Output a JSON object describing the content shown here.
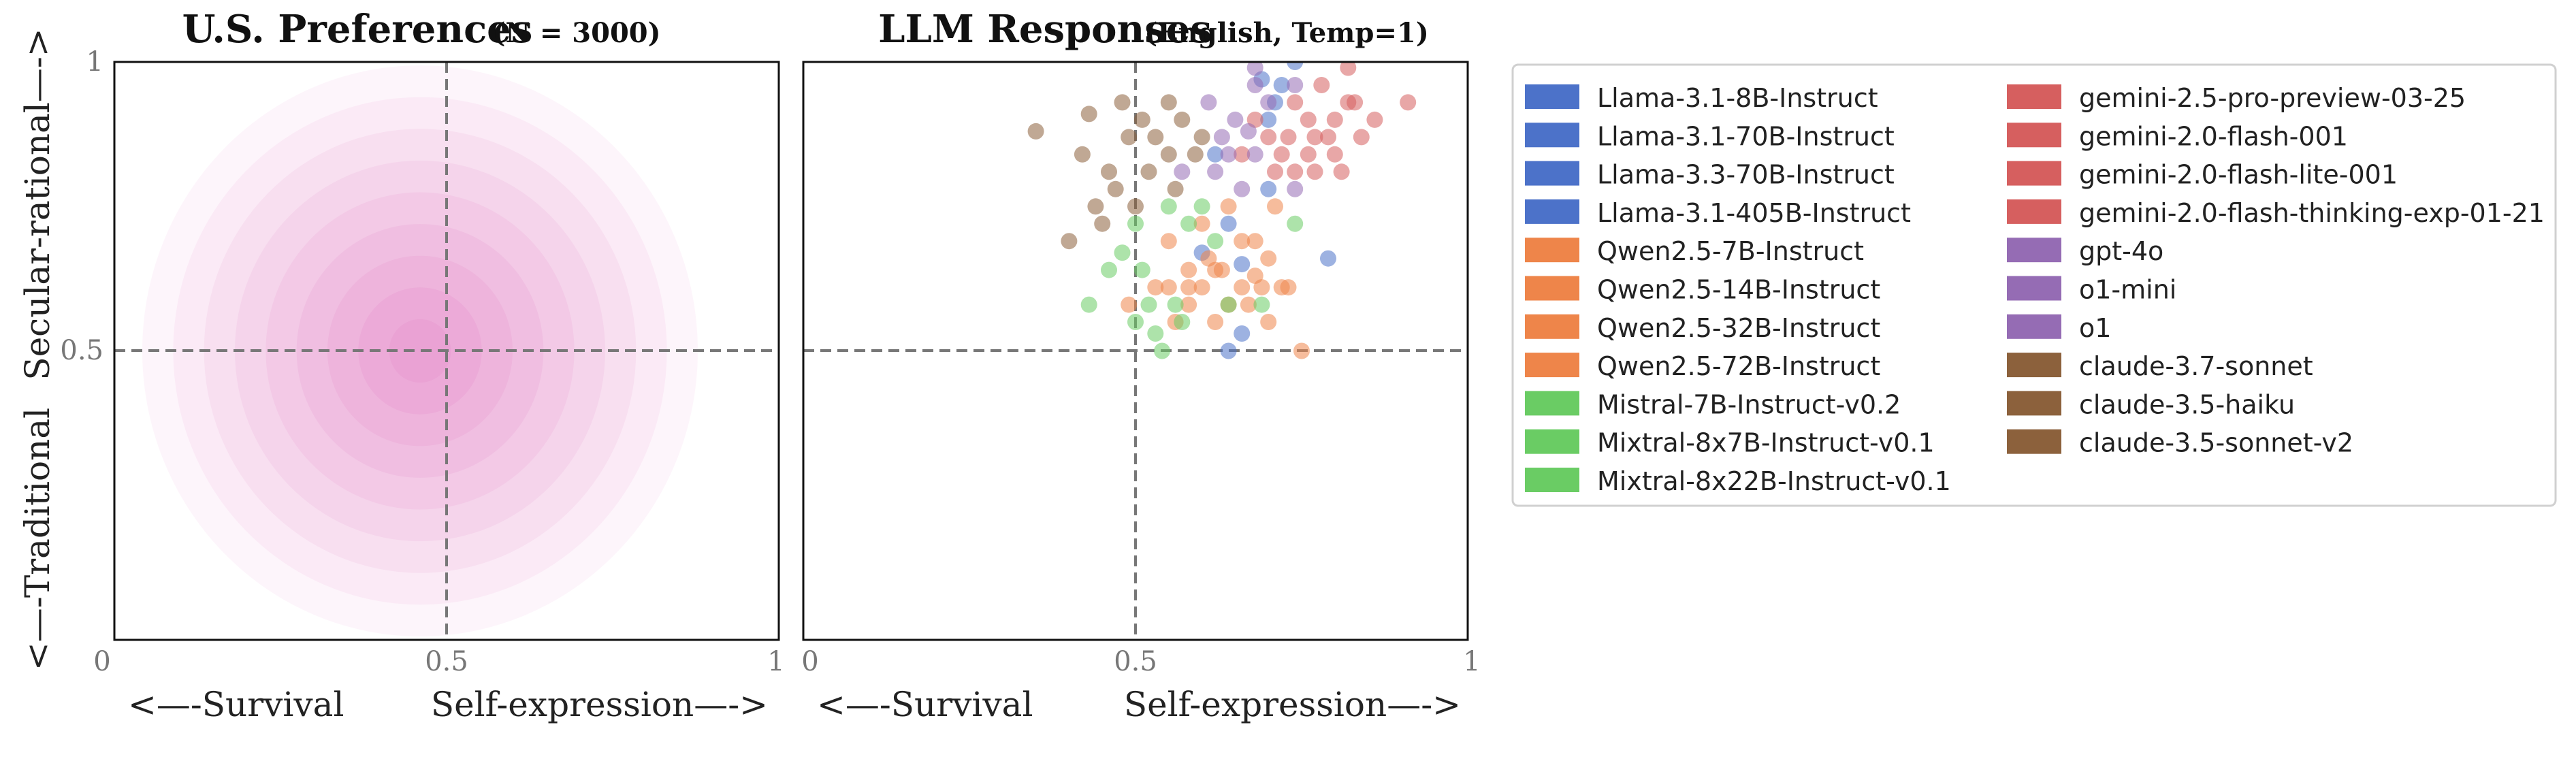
{
  "chart_data": [
    {
      "type": "heatmap",
      "title": "U.S. Preferences",
      "subtitle": "(N = 3000)",
      "xlabel_left": "<—-Survival",
      "xlabel_right": "Self-expression—->",
      "ylabel_top": "Secular-rational—->",
      "ylabel_bottom": "<—-Traditional",
      "xlim": [
        0,
        1
      ],
      "ylim": [
        0,
        1
      ],
      "xticks": [
        "0",
        "0.5",
        "1"
      ],
      "yticks": [
        "0.5",
        "1"
      ],
      "reference_lines": {
        "x": 0.5,
        "y": 0.5
      },
      "density_color": "#e377c2",
      "density_peak": {
        "x": 0.46,
        "y": 0.5
      },
      "density_spread": {
        "x": 0.22,
        "y": 0.26
      }
    },
    {
      "type": "scatter",
      "title": "LLM Responses",
      "subtitle": "(English, Temp=1)",
      "xlabel_left": "<—-Survival",
      "xlabel_right": "Self-expression—->",
      "xlim": [
        0,
        1
      ],
      "ylim": [
        0,
        1
      ],
      "xticks": [
        "0",
        "0.5",
        "1"
      ],
      "reference_lines": {
        "x": 0.5,
        "y": 0.5
      },
      "marker_opacity": 0.55,
      "series": [
        {
          "name": "Llama-3.1-8B-Instruct",
          "color": "#4c72c9",
          "points": [
            [
              0.74,
              1.0
            ],
            [
              0.69,
              0.97
            ],
            [
              0.71,
              0.93
            ]
          ]
        },
        {
          "name": "Llama-3.1-70B-Instruct",
          "color": "#4c72c9",
          "points": [
            [
              0.72,
              0.96
            ],
            [
              0.66,
              0.65
            ],
            [
              0.7,
              0.78
            ]
          ]
        },
        {
          "name": "Llama-3.3-70B-Instruct",
          "color": "#4c72c9",
          "points": [
            [
              0.7,
              0.9
            ],
            [
              0.64,
              0.72
            ],
            [
              0.6,
              0.67
            ]
          ]
        },
        {
          "name": "Llama-3.1-405B-Instruct",
          "color": "#4c72c9",
          "points": [
            [
              0.66,
              0.53
            ],
            [
              0.64,
              0.5
            ],
            [
              0.79,
              0.66
            ],
            [
              0.62,
              0.84
            ]
          ]
        },
        {
          "name": "Qwen2.5-7B-Instruct",
          "color": "#ee854a",
          "points": [
            [
              0.61,
              0.66
            ],
            [
              0.62,
              0.64
            ],
            [
              0.68,
              0.63
            ],
            [
              0.72,
              0.61
            ],
            [
              0.58,
              0.58
            ],
            [
              0.64,
              0.58
            ],
            [
              0.75,
              0.5
            ],
            [
              0.6,
              0.61
            ]
          ]
        },
        {
          "name": "Qwen2.5-14B-Instruct",
          "color": "#ee854a",
          "points": [
            [
              0.49,
              0.58
            ],
            [
              0.58,
              0.61
            ],
            [
              0.63,
              0.64
            ],
            [
              0.7,
              0.66
            ],
            [
              0.66,
              0.69
            ],
            [
              0.55,
              0.69
            ],
            [
              0.53,
              0.61
            ]
          ]
        },
        {
          "name": "Qwen2.5-32B-Instruct",
          "color": "#ee854a",
          "points": [
            [
              0.66,
              0.61
            ],
            [
              0.56,
              0.55
            ],
            [
              0.62,
              0.55
            ],
            [
              0.7,
              0.55
            ],
            [
              0.55,
              0.61
            ],
            [
              0.67,
              0.58
            ]
          ]
        },
        {
          "name": "Qwen2.5-72B-Instruct",
          "color": "#ee854a",
          "points": [
            [
              0.6,
              0.72
            ],
            [
              0.68,
              0.69
            ],
            [
              0.73,
              0.61
            ],
            [
              0.64,
              0.75
            ],
            [
              0.71,
              0.75
            ],
            [
              0.58,
              0.64
            ],
            [
              0.69,
              0.61
            ]
          ]
        },
        {
          "name": "Mistral-7B-Instruct-v0.2",
          "color": "#6acc64",
          "points": [
            [
              0.43,
              0.58
            ],
            [
              0.48,
              0.67
            ],
            [
              0.5,
              0.55
            ],
            [
              0.53,
              0.53
            ],
            [
              0.57,
              0.55
            ]
          ]
        },
        {
          "name": "Mixtral-8x7B-Instruct-v0.1",
          "color": "#6acc64",
          "points": [
            [
              0.46,
              0.64
            ],
            [
              0.51,
              0.64
            ],
            [
              0.54,
              0.5
            ],
            [
              0.52,
              0.58
            ],
            [
              0.62,
              0.69
            ],
            [
              0.6,
              0.75
            ],
            [
              0.56,
              0.58
            ]
          ]
        },
        {
          "name": "Mixtral-8x22B-Instruct-v0.1",
          "color": "#6acc64",
          "points": [
            [
              0.5,
              0.72
            ],
            [
              0.55,
              0.75
            ],
            [
              0.58,
              0.72
            ],
            [
              0.64,
              0.58
            ],
            [
              0.74,
              0.72
            ],
            [
              0.69,
              0.58
            ]
          ]
        },
        {
          "name": "gemini-2.5-pro-preview-03-25",
          "color": "#d65f5f",
          "points": [
            [
              0.78,
              0.96
            ],
            [
              0.82,
              0.99
            ],
            [
              0.91,
              0.93
            ],
            [
              0.8,
              0.9
            ],
            [
              0.86,
              0.9
            ],
            [
              0.8,
              0.84
            ]
          ]
        },
        {
          "name": "gemini-2.0-flash-001",
          "color": "#d65f5f",
          "points": [
            [
              0.74,
              0.93
            ],
            [
              0.77,
              0.87
            ],
            [
              0.72,
              0.84
            ],
            [
              0.77,
              0.81
            ],
            [
              0.84,
              0.87
            ],
            [
              0.82,
              0.93
            ]
          ]
        },
        {
          "name": "gemini-2.0-flash-lite-001",
          "color": "#d65f5f",
          "points": [
            [
              0.7,
              0.87
            ],
            [
              0.76,
              0.9
            ],
            [
              0.79,
              0.87
            ],
            [
              0.74,
              0.81
            ],
            [
              0.71,
              0.81
            ]
          ]
        },
        {
          "name": "gemini-2.0-flash-thinking-exp-01-21",
          "color": "#d65f5f",
          "points": [
            [
              0.66,
              0.84
            ],
            [
              0.68,
              0.9
            ],
            [
              0.73,
              0.87
            ],
            [
              0.76,
              0.84
            ],
            [
              0.81,
              0.81
            ],
            [
              0.83,
              0.93
            ]
          ]
        },
        {
          "name": "gpt-4o",
          "color": "#956cb4",
          "points": [
            [
              0.68,
              0.84
            ],
            [
              0.63,
              0.87
            ],
            [
              0.7,
              0.93
            ],
            [
              0.74,
              0.96
            ],
            [
              0.68,
              0.96
            ]
          ]
        },
        {
          "name": "o1-mini",
          "color": "#956cb4",
          "points": [
            [
              0.57,
              0.81
            ],
            [
              0.61,
              0.93
            ],
            [
              0.65,
              0.9
            ],
            [
              0.66,
              0.78
            ],
            [
              0.62,
              0.81
            ]
          ]
        },
        {
          "name": "o1",
          "color": "#956cb4",
          "points": [
            [
              0.68,
              0.99
            ],
            [
              0.67,
              0.88
            ],
            [
              0.74,
              0.78
            ],
            [
              0.64,
              0.84
            ]
          ]
        },
        {
          "name": "claude-3.7-sonnet",
          "color": "#8c613c",
          "points": [
            [
              0.35,
              0.88
            ],
            [
              0.42,
              0.84
            ],
            [
              0.46,
              0.81
            ],
            [
              0.44,
              0.75
            ],
            [
              0.49,
              0.87
            ],
            [
              0.52,
              0.81
            ]
          ]
        },
        {
          "name": "claude-3.5-haiku",
          "color": "#8c613c",
          "points": [
            [
              0.4,
              0.69
            ],
            [
              0.45,
              0.72
            ],
            [
              0.47,
              0.78
            ],
            [
              0.43,
              0.91
            ],
            [
              0.51,
              0.9
            ],
            [
              0.57,
              0.9
            ],
            [
              0.55,
              0.84
            ]
          ]
        },
        {
          "name": "claude-3.5-sonnet-v2",
          "color": "#8c613c",
          "points": [
            [
              0.48,
              0.93
            ],
            [
              0.53,
              0.87
            ],
            [
              0.6,
              0.87
            ],
            [
              0.56,
              0.78
            ],
            [
              0.5,
              0.75
            ],
            [
              0.55,
              0.93
            ],
            [
              0.59,
              0.84
            ]
          ]
        }
      ]
    }
  ]
}
